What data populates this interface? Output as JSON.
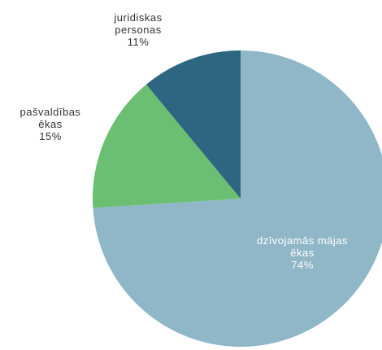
{
  "chart_data": {
    "type": "pie",
    "start_angle_deg": 0,
    "direction": "clockwise",
    "slices": [
      {
        "label_lines": [
          "dzīvojamās mājas",
          "ēkas",
          "74%"
        ],
        "value": 74,
        "color": "#8fb7c8",
        "label_style": "light"
      },
      {
        "label_lines": [
          "pašvaldības",
          "ēkas",
          "15%"
        ],
        "value": 15,
        "color": "#6abf73",
        "label_style": "dark"
      },
      {
        "label_lines": [
          "juridiskas",
          "personas",
          "11%"
        ],
        "value": 11,
        "color": "#2e6580",
        "label_style": "dark"
      }
    ]
  }
}
